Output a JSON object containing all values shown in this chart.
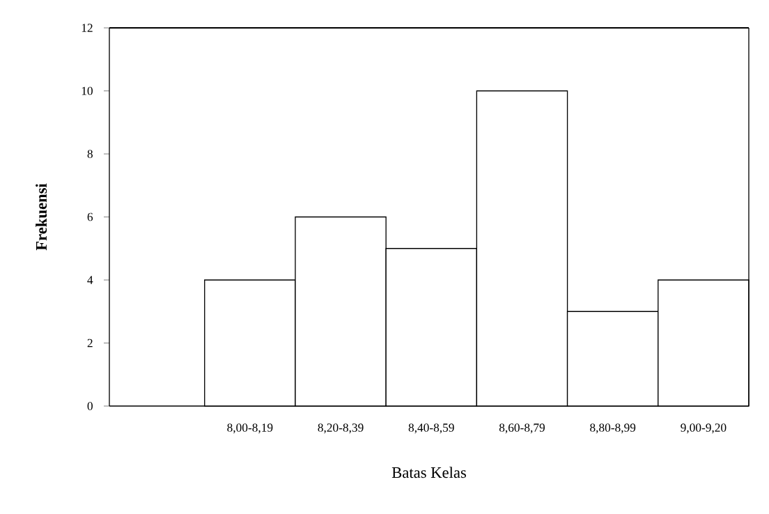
{
  "chart_data": {
    "type": "bar",
    "xlabel": "Batas Kelas",
    "ylabel": "Frekuensi",
    "categories": [
      null,
      "8,00-8,19",
      "8,20-8,39",
      "8,40-8,59",
      "8,60-8,79",
      "8,80-8,99",
      "9,00-9,20"
    ],
    "values": [
      null,
      4,
      6,
      5,
      10,
      3,
      4
    ],
    "color": "#ffffff",
    "ylim": [
      0,
      12
    ],
    "yticks": [
      0,
      2,
      4,
      6,
      8,
      10,
      12
    ]
  }
}
